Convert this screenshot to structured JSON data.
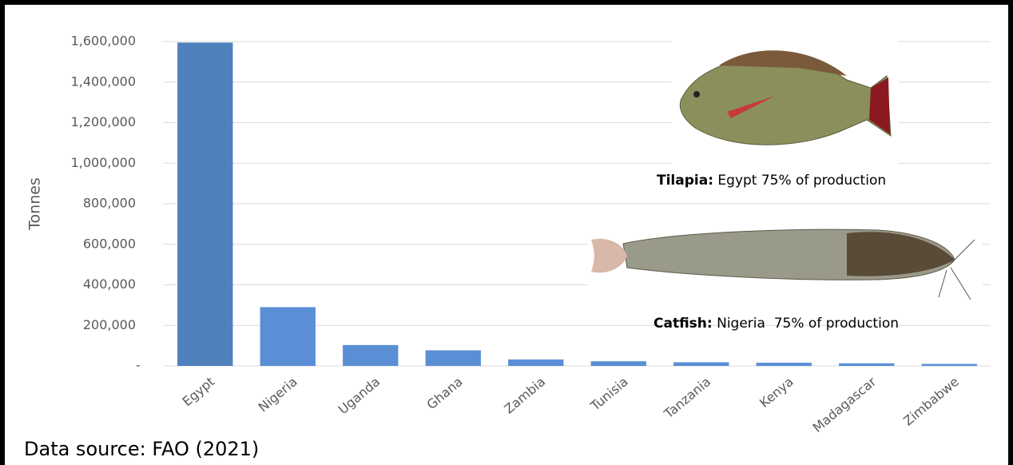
{
  "chart_data": {
    "type": "bar",
    "y_label": "Tonnes",
    "categories": [
      "Egypt",
      "Nigeria",
      "Uganda",
      "Ghana",
      "Zambia",
      "Tunisia",
      "Tanzania",
      "Kenya",
      "Madagascar",
      "Zimbabwe"
    ],
    "values": [
      1595000,
      290000,
      103000,
      77000,
      32000,
      23000,
      18000,
      16000,
      13000,
      10000
    ],
    "colors": [
      "#4f81bd",
      "#5a8fd6",
      "#5a8fd6",
      "#5a8fd6",
      "#5a8fd6",
      "#5a8fd6",
      "#5a8fd6",
      "#5a8fd6",
      "#5a8fd6",
      "#5a8fd6"
    ],
    "ylim": [
      0,
      1600000
    ],
    "yticks": [
      {
        "value": 0,
        "label": "-"
      },
      {
        "value": 200000,
        "label": "200,000"
      },
      {
        "value": 400000,
        "label": "400,000"
      },
      {
        "value": 600000,
        "label": "600,000"
      },
      {
        "value": 800000,
        "label": "800,000"
      },
      {
        "value": 1000000,
        "label": "1,000,000"
      },
      {
        "value": 1200000,
        "label": "1,200,000"
      },
      {
        "value": 1400000,
        "label": "1,400,000"
      },
      {
        "value": 1600000,
        "label": "1,600,000"
      }
    ],
    "grid": true,
    "annotations": [
      {
        "label": "Tilapia:",
        "text": "Egypt 75% of production"
      },
      {
        "label": "Catfish:",
        "text": "Nigeria  75% of production"
      }
    ],
    "source": "Data source: FAO (2021)"
  }
}
